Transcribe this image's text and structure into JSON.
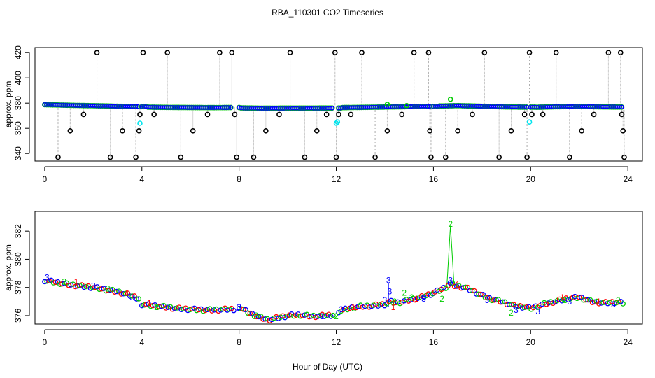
{
  "chart_data": {
    "title": "RBA_110301  CO2 Timeseries",
    "xlabel": "Hour of Day (UTC)",
    "panels": [
      {
        "id": "top",
        "type": "scatter",
        "ylabel": "approx. ppm",
        "xlim": [
          -0.4,
          24.6
        ],
        "ylim": [
          334,
          424
        ],
        "xticks": [
          0,
          4,
          8,
          12,
          16,
          20,
          24
        ],
        "yticks": [
          340,
          360,
          380,
          400,
          420
        ],
        "colors": {
          "raw": "#000000",
          "flag1": "#0000ff",
          "flag2": "#00cc00",
          "flag3": "#00e5ee",
          "flag4": "#ff0000",
          "gap": "#aaaaaa"
        },
        "series": [
          {
            "name": "baseline",
            "segments": [
              {
                "x": [
                  0.0,
                  0.6,
                  1.2,
                  1.8,
                  2.4,
                  3.0,
                  3.6,
                  3.9
                ],
                "y": [
                  378.8,
                  378.5,
                  378.2,
                  378.0,
                  377.8,
                  377.5,
                  377.3,
                  377.2
                ]
              },
              {
                "x": [
                  4.0,
                  5.0,
                  6.0,
                  7.0,
                  7.7
                ],
                "y": [
                  376.9,
                  376.6,
                  376.5,
                  376.4,
                  376.5
                ]
              },
              {
                "x": [
                  8.0,
                  9.0,
                  10.0,
                  11.0,
                  11.9
                ],
                "y": [
                  376.2,
                  375.9,
                  376.0,
                  376.0,
                  376.1
                ]
              },
              {
                "x": [
                  12.1,
                  13.0,
                  14.0,
                  15.0,
                  15.9
                ],
                "y": [
                  376.4,
                  376.6,
                  376.9,
                  377.2,
                  377.4
                ]
              },
              {
                "x": [
                  16.0,
                  17.0,
                  18.0,
                  19.0,
                  19.9
                ],
                "y": [
                  377.6,
                  378.0,
                  377.5,
                  377.0,
                  376.8
                ]
              },
              {
                "x": [
                  20.0,
                  21.0,
                  22.0,
                  23.0,
                  23.8
                ],
                "y": [
                  376.6,
                  377.1,
                  377.4,
                  377.0,
                  376.9
                ]
              }
            ]
          },
          {
            "name": "spikes",
            "x": [
              0.55,
              1.05,
              1.6,
              2.15,
              2.7,
              3.2,
              3.75,
              3.88,
              3.92,
              4.05,
              4.5,
              5.05,
              5.6,
              6.1,
              6.7,
              7.2,
              7.7,
              7.82,
              7.9,
              8.6,
              9.1,
              9.65,
              10.1,
              10.7,
              11.2,
              11.6,
              11.95,
              12.0,
              12.1,
              12.6,
              13.05,
              13.6,
              14.1,
              14.7,
              15.2,
              15.8,
              15.85,
              15.9,
              16.5,
              17.0,
              17.6,
              18.1,
              18.7,
              19.2,
              19.75,
              19.85,
              19.95,
              20.05,
              20.5,
              21.05,
              21.6,
              22.1,
              22.6,
              23.2,
              23.7,
              23.75,
              23.8,
              23.85
            ],
            "y": [
              337,
              358,
              371,
              420,
              337,
              358,
              337,
              358,
              371,
              420,
              371,
              420,
              337,
              358,
              371,
              420,
              420,
              371,
              337,
              337,
              358,
              371,
              420,
              337,
              358,
              371,
              420,
              337,
              371,
              371,
              420,
              337,
              358,
              371,
              420,
              420,
              358,
              337,
              337,
              358,
              371,
              420,
              337,
              358,
              371,
              337,
              420,
              371,
              371,
              420,
              337,
              358,
              371,
              420,
              420,
              371,
              358,
              337
            ]
          },
          {
            "name": "flag3",
            "x": [
              3.92,
              12.0,
              12.05,
              19.95
            ],
            "y": [
              364,
              364,
              365,
              365
            ]
          },
          {
            "name": "flag2",
            "x": [
              14.1,
              14.9,
              16.7
            ],
            "y": [
              379,
              378,
              383
            ]
          }
        ]
      },
      {
        "id": "bottom",
        "type": "line",
        "ylabel": "approx. ppm",
        "xlim": [
          -0.4,
          24.6
        ],
        "ylim": [
          375.4,
          383.4
        ],
        "xticks": [
          0,
          4,
          8,
          12,
          16,
          20,
          24
        ],
        "yticks": [
          376,
          378,
          380,
          382
        ],
        "colors": {
          "ch1": "#ff0000",
          "ch2": "#00cc00",
          "ch3": "#0000ff"
        },
        "series": [
          {
            "name": "clean",
            "segments": [
              {
                "x": [
                  0.0,
                  0.5,
                  1.0,
                  1.5,
                  2.0,
                  2.5,
                  3.0,
                  3.5,
                  3.9
                ],
                "y": [
                  378.5,
                  378.35,
                  378.2,
                  378.1,
                  378.0,
                  377.85,
                  377.7,
                  377.45,
                  377.2
                ]
              },
              {
                "x": [
                  4.0,
                  4.5,
                  5.0,
                  5.5,
                  6.0,
                  6.5,
                  7.0,
                  7.5,
                  7.8
                ],
                "y": [
                  376.8,
                  376.7,
                  376.6,
                  376.5,
                  376.45,
                  376.4,
                  376.4,
                  376.45,
                  376.45
                ]
              },
              {
                "x": [
                  8.0,
                  8.4,
                  8.8,
                  9.2,
                  9.6,
                  10.0,
                  10.5,
                  11.0,
                  11.5,
                  11.9
                ],
                "y": [
                  376.6,
                  376.2,
                  375.9,
                  375.7,
                  375.85,
                  376.0,
                  376.05,
                  375.95,
                  376.0,
                  376.05
                ]
              },
              {
                "x": [
                  12.1,
                  12.5,
                  13.0,
                  13.5,
                  14.0,
                  14.2,
                  14.5,
                  15.0,
                  15.5,
                  16.0,
                  16.5,
                  16.7,
                  16.9,
                  17.3,
                  17.8,
                  18.3,
                  18.8,
                  19.3,
                  19.8,
                  20.0,
                  20.5,
                  21.0,
                  21.5,
                  22.0,
                  22.5,
                  23.0,
                  23.5,
                  23.8
                ],
                "y": [
                  376.3,
                  376.5,
                  376.65,
                  376.7,
                  376.8,
                  377.0,
                  376.9,
                  377.1,
                  377.3,
                  377.6,
                  378.0,
                  378.3,
                  378.1,
                  378.0,
                  377.6,
                  377.2,
                  377.0,
                  376.7,
                  376.6,
                  376.5,
                  376.8,
                  377.0,
                  377.2,
                  377.3,
                  377.0,
                  376.9,
                  376.95,
                  376.9
                ]
              }
            ]
          },
          {
            "name": "labels-3",
            "points": [
              [
                0.1,
                378.7
              ],
              [
                2.0,
                378.1
              ],
              [
                3.6,
                377.3
              ],
              [
                8.0,
                376.6
              ],
              [
                11.4,
                375.95
              ],
              [
                12.2,
                376.45
              ],
              [
                14.0,
                377.1
              ],
              [
                14.15,
                378.5
              ],
              [
                14.2,
                377.7
              ],
              [
                15.6,
                377.2
              ],
              [
                16.0,
                377.6
              ],
              [
                16.7,
                378.5
              ],
              [
                18.2,
                377.1
              ],
              [
                19.4,
                376.4
              ],
              [
                20.3,
                376.3
              ],
              [
                21.6,
                377.0
              ],
              [
                23.4,
                376.8
              ]
            ],
            "text": "3"
          },
          {
            "name": "labels-2",
            "points": [
              [
                0.8,
                378.4
              ],
              [
                2.6,
                377.9
              ],
              [
                4.6,
                376.6
              ],
              [
                8.7,
                376.0
              ],
              [
                12.0,
                375.95
              ],
              [
                14.4,
                377.0
              ],
              [
                14.8,
                377.6
              ],
              [
                15.1,
                377.3
              ],
              [
                16.7,
                382.5
              ],
              [
                16.35,
                377.2
              ],
              [
                19.2,
                376.2
              ],
              [
                21.4,
                377.1
              ],
              [
                23.6,
                377.1
              ]
            ],
            "text": "2"
          },
          {
            "name": "labels-1",
            "points": [
              [
                1.3,
                378.4
              ],
              [
                3.4,
                377.6
              ],
              [
                4.3,
                376.9
              ],
              [
                12.7,
                376.6
              ],
              [
                14.35,
                376.6
              ],
              [
                15.3,
                377.2
              ],
              [
                17.0,
                378.2
              ],
              [
                20.7,
                376.8
              ],
              [
                21.3,
                377.3
              ],
              [
                22.8,
                377.0
              ]
            ],
            "text": "1"
          }
        ]
      }
    ]
  }
}
